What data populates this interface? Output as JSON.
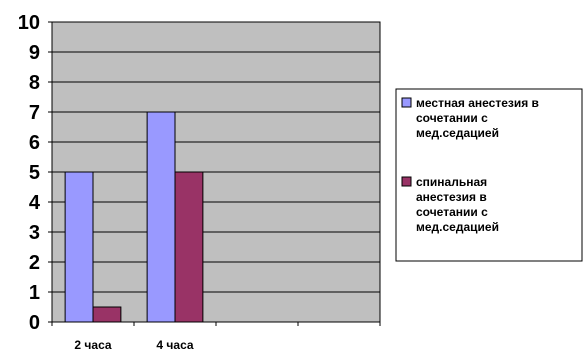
{
  "chart_data": {
    "type": "bar",
    "categories": [
      "2 часа",
      "4 часа",
      "",
      ""
    ],
    "series": [
      {
        "name_lines": [
          "местная анестезия в",
          "сочетании с",
          "мед.седацией"
        ],
        "values": [
          5,
          7,
          null,
          null
        ],
        "color": "#9999FF"
      },
      {
        "name_lines": [
          "спинальная",
          "анестезия в",
          "сочетании с",
          "мед.седацией"
        ],
        "values": [
          0.5,
          5,
          null,
          null
        ],
        "color": "#993366"
      }
    ],
    "ylim": [
      0,
      10
    ],
    "yticks": [
      "0",
      "1",
      "2",
      "3",
      "4",
      "5",
      "6",
      "7",
      "8",
      "9",
      "10"
    ],
    "plot_background": "#BFBFBF",
    "grid": true,
    "legend_position": "right"
  }
}
